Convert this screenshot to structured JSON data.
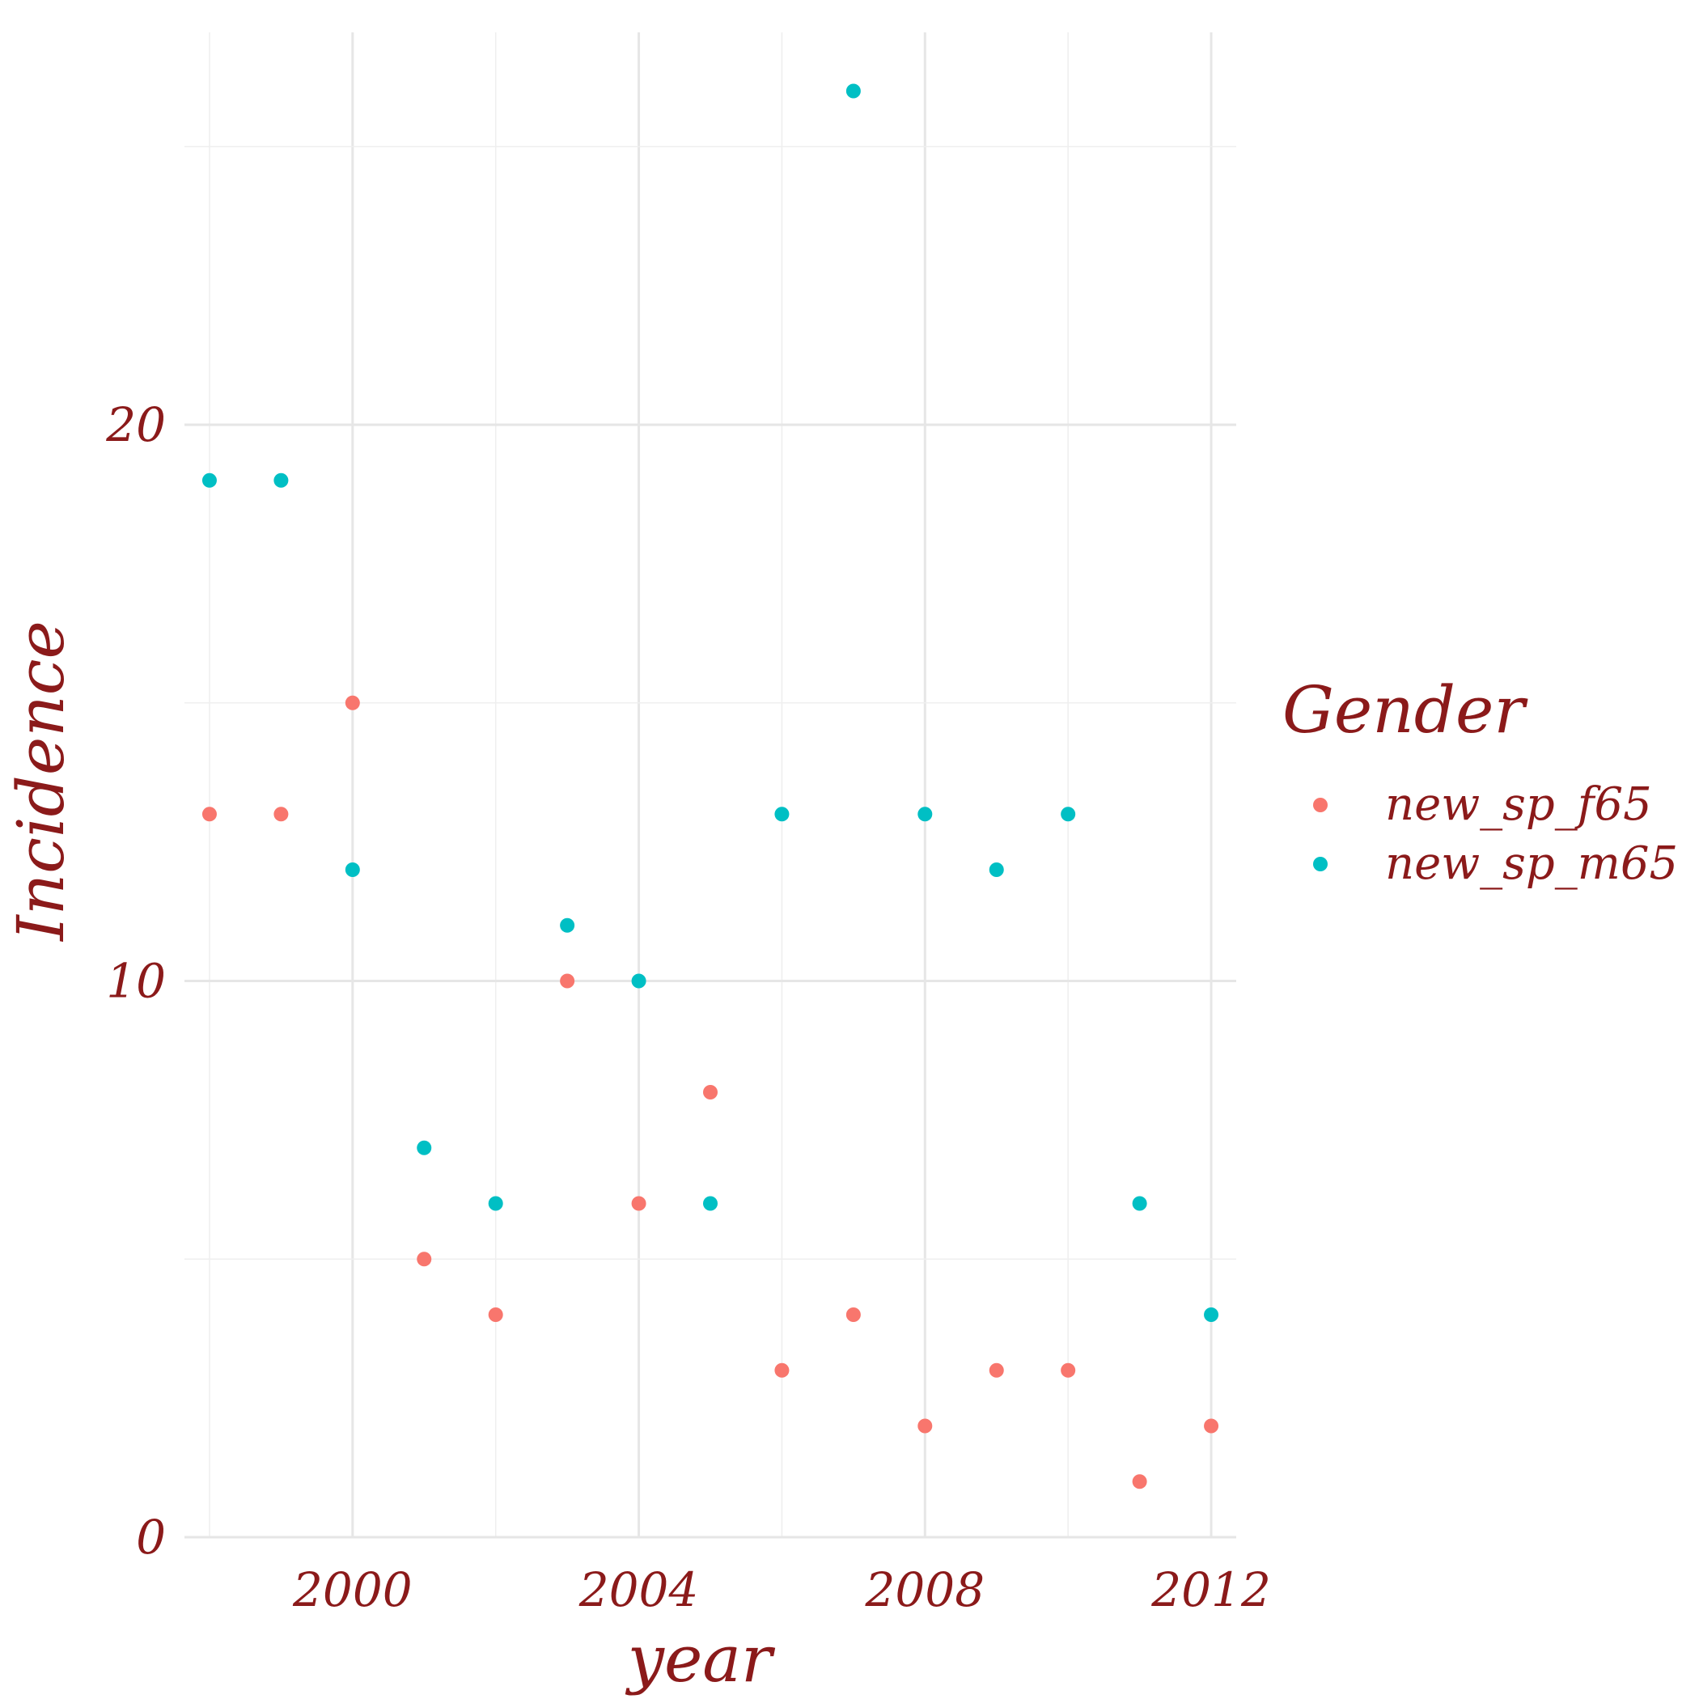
{
  "chart_data": {
    "type": "scatter",
    "title": "",
    "xlabel": "year",
    "ylabel": "Incidence",
    "xlim": [
      1997.65,
      2012.35
    ],
    "ylim": [
      0,
      25
    ],
    "x_ticks": [
      2000,
      2004,
      2008,
      2012
    ],
    "y_ticks": [
      0,
      10,
      20
    ],
    "grid": true,
    "legend": {
      "title": "Gender",
      "placement": "right"
    },
    "series": [
      {
        "name": "new_sp_f65",
        "color": "#F8766D",
        "x": [
          1998,
          1999,
          2000,
          2001,
          2002,
          2003,
          2004,
          2005,
          2006,
          2007,
          2008,
          2009,
          2010,
          2011,
          2012
        ],
        "y": [
          13,
          13,
          15,
          5,
          4,
          10,
          6,
          8,
          3,
          4,
          2,
          3,
          3,
          1,
          2
        ]
      },
      {
        "name": "new_sp_m65",
        "color": "#00BFC4",
        "x": [
          1998,
          1999,
          2000,
          2001,
          2002,
          2003,
          2004,
          2005,
          2006,
          2007,
          2008,
          2009,
          2010,
          2011,
          2012
        ],
        "y": [
          19,
          19,
          12,
          7,
          6,
          11,
          10,
          6,
          13,
          26,
          13,
          12,
          13,
          6,
          4
        ]
      }
    ]
  }
}
